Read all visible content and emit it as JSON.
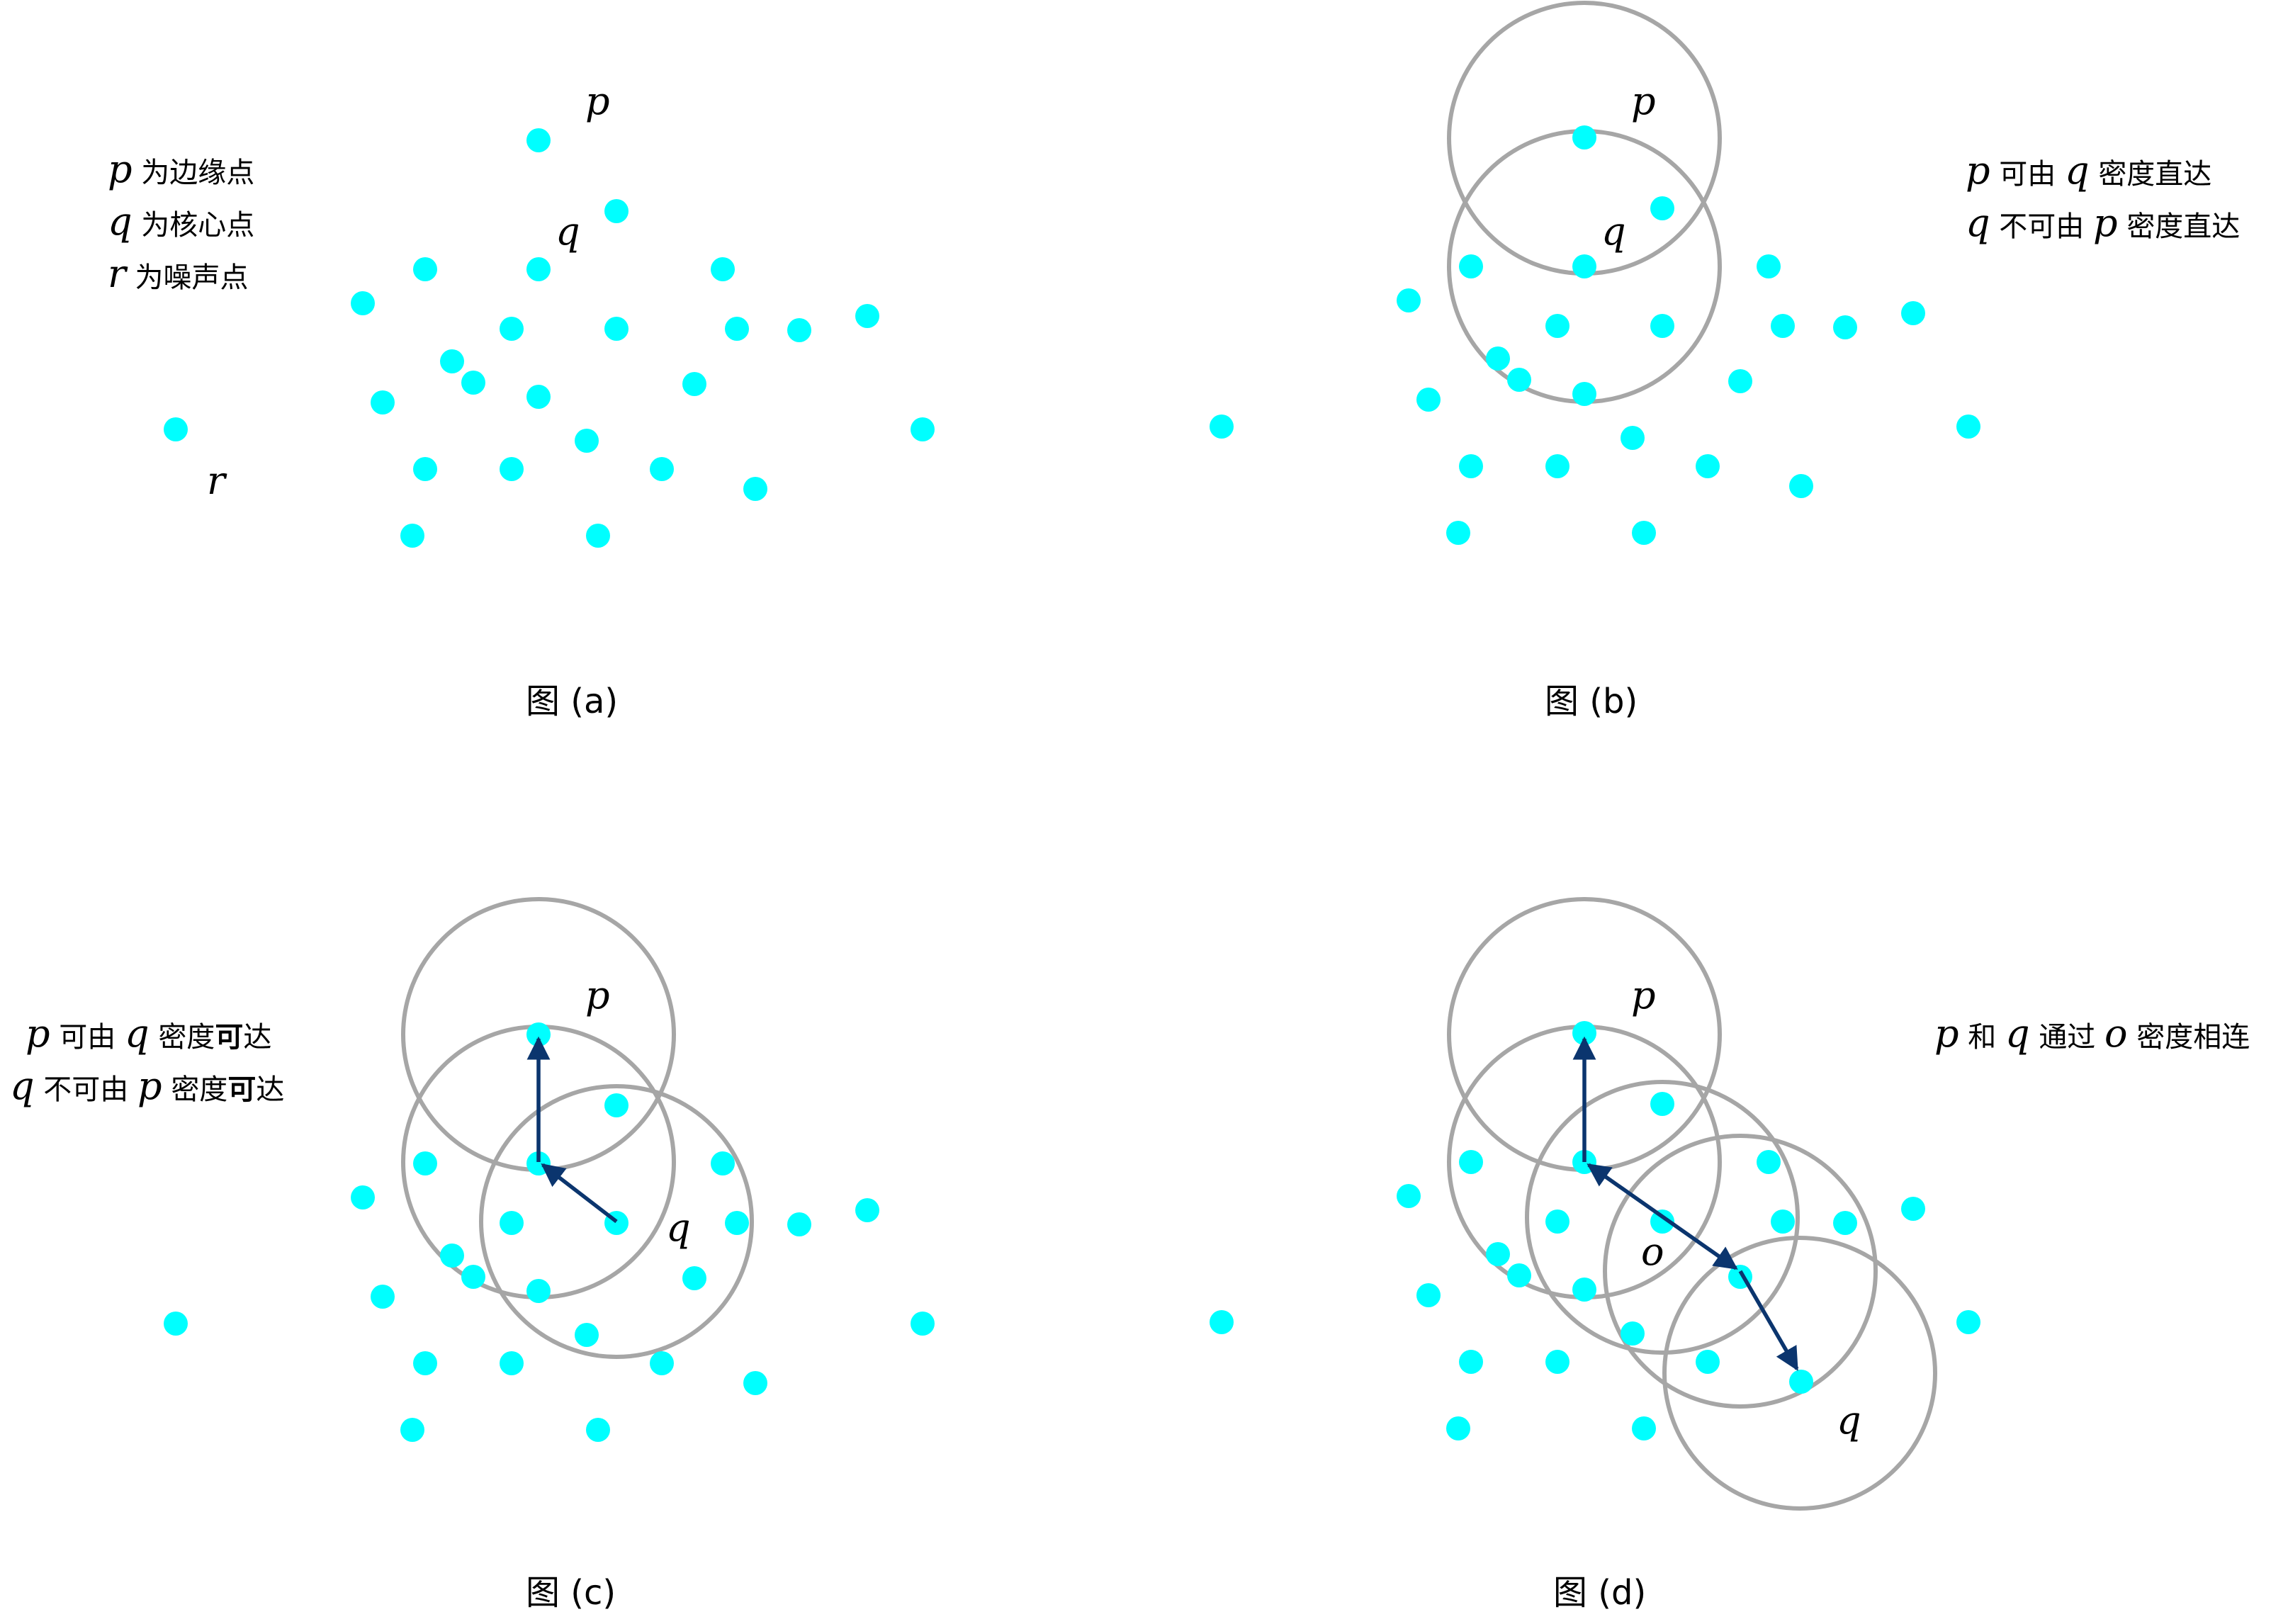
{
  "colors": {
    "point": "#00ffff",
    "circle": "#a6a6a6",
    "arrow": "#0b356e"
  },
  "panels": [
    {
      "caption": "图 (a)",
      "labels": {
        "p": "p",
        "q": "q",
        "r": "r"
      },
      "legend": [
        {
          "m1": "p",
          "t1": "为边缘点"
        },
        {
          "m1": "q",
          "t1": "为核心点"
        },
        {
          "m1": "r",
          "t1": "为噪声点"
        }
      ]
    },
    {
      "caption": "图 (b)",
      "labels": {
        "p": "p",
        "q": "q"
      },
      "legend": [
        {
          "m1": "p",
          "t1": "可由",
          "m2": "q",
          "t2": "密度直达"
        },
        {
          "m1": "q",
          "t1": "不可由",
          "m2": "p",
          "t2": "密度直达"
        }
      ]
    },
    {
      "caption": "图 (c)",
      "labels": {
        "p": "p",
        "q": "q"
      },
      "legend": [
        {
          "m1": "p",
          "t1": "可由",
          "m2": "q",
          "t2": "密度",
          "b2": "可",
          "t3": "达"
        },
        {
          "m1": "q",
          "t1": "不可由",
          "m2": "p",
          "t2": "密度",
          "b2": "可",
          "t3": "达"
        }
      ]
    },
    {
      "caption": "图 (d)",
      "labels": {
        "p": "p",
        "q": "q",
        "o": "o"
      },
      "legend": [
        {
          "m1": "p",
          "t1": "和",
          "m2": "q",
          "t2": "通过",
          "m3": "o",
          "t3": "密度相连"
        }
      ]
    }
  ]
}
